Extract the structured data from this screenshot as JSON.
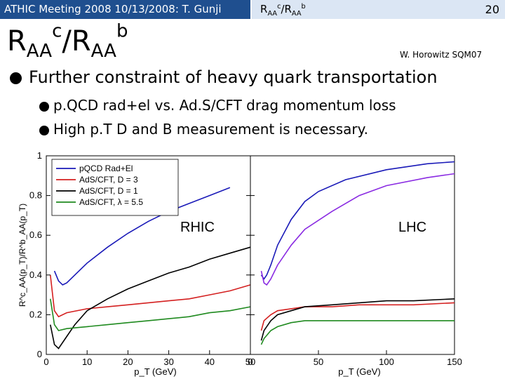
{
  "header": {
    "meeting": "ATHIC Meeting 2008 10/13/2008: T. Gunji",
    "subject": {
      "base": "R",
      "sub1": "AA",
      "sup1": "c",
      "sep": "/R",
      "sub2": "AA",
      "sup2": "b"
    },
    "page_number": "20"
  },
  "title": {
    "base": "R",
    "sub1": "AA",
    "sup1": "c",
    "sep": "/R",
    "sub2": "AA",
    "sup2": "b"
  },
  "citation": "W. Horowitz SQM07",
  "bullets": [
    "Further constraint of heavy quark transportation",
    "p.QCD rad+el vs. Ad.S/CFT drag momentum loss",
    "High p.T D and B measurement is necessary."
  ],
  "colors": {
    "header_bg": "#1f4f8f",
    "header_right_bg": "#dbe6f4",
    "blue": "#1a1ab8",
    "red": "#d42020",
    "black": "#000000",
    "green": "#1f8a1f",
    "purple": "#8a2be2"
  },
  "chart_data": {
    "type": "line",
    "ylabel": "R^c_AA(p_T)/R^b_AA(p_T)",
    "ylim": [
      0,
      1
    ],
    "yticks": [
      "0",
      "0.2",
      "0.4",
      "0.6",
      "0.8",
      "1"
    ],
    "legend": [
      "pQCD Rad+El",
      "AdS/CFT, D = 3",
      "AdS/CFT, D = 1",
      "AdS/CFT, λ = 5.5"
    ],
    "legend_position": "top-left",
    "panels": [
      {
        "label": "RHIC",
        "xlabel": "p_T (GeV)",
        "xlim": [
          0,
          50
        ],
        "xticks": [
          "0",
          "10",
          "20",
          "30",
          "40",
          "50"
        ],
        "series": [
          {
            "name": "pQCD Rad+El",
            "color": "blue",
            "x": [
              2,
              3,
              4,
              5,
              7,
              10,
              15,
              20,
              25,
              30,
              35,
              40,
              45
            ],
            "y": [
              0.42,
              0.37,
              0.35,
              0.36,
              0.4,
              0.46,
              0.54,
              0.61,
              0.67,
              0.72,
              0.76,
              0.8,
              0.84
            ]
          },
          {
            "name": "AdS/CFT, D = 3",
            "color": "red",
            "x": [
              1,
              2,
              3,
              5,
              10,
              15,
              20,
              25,
              30,
              35,
              40,
              45,
              50
            ],
            "y": [
              0.4,
              0.22,
              0.19,
              0.21,
              0.23,
              0.24,
              0.25,
              0.26,
              0.27,
              0.28,
              0.3,
              0.32,
              0.35
            ]
          },
          {
            "name": "AdS/CFT, D = 1",
            "color": "black",
            "x": [
              1,
              2,
              3,
              5,
              7,
              10,
              15,
              20,
              25,
              30,
              35,
              40,
              45,
              50
            ],
            "y": [
              0.15,
              0.05,
              0.03,
              0.09,
              0.15,
              0.22,
              0.28,
              0.33,
              0.37,
              0.41,
              0.44,
              0.48,
              0.51,
              0.54
            ]
          },
          {
            "name": "AdS/CFT, λ = 5.5",
            "color": "green",
            "x": [
              1,
              2,
              3,
              5,
              10,
              15,
              20,
              25,
              30,
              35,
              40,
              45,
              50
            ],
            "y": [
              0.28,
              0.15,
              0.12,
              0.13,
              0.14,
              0.15,
              0.16,
              0.17,
              0.18,
              0.19,
              0.21,
              0.22,
              0.24
            ]
          }
        ]
      },
      {
        "label": "LHC",
        "xlabel": "p_T (GeV)",
        "xlim": [
          0,
          150
        ],
        "xticks": [
          "0",
          "50",
          "100",
          "150"
        ],
        "series": [
          {
            "name": "pQCD Rad+El",
            "color": "blue",
            "x": [
              8,
              10,
              12,
              15,
              20,
              30,
              40,
              50,
              70,
              100,
              130,
              150
            ],
            "y": [
              0.4,
              0.38,
              0.4,
              0.45,
              0.55,
              0.68,
              0.77,
              0.82,
              0.88,
              0.93,
              0.96,
              0.97
            ]
          },
          {
            "name": "AdS/CFT, D = 3",
            "color": "red",
            "x": [
              8,
              10,
              15,
              20,
              30,
              40,
              60,
              80,
              100,
              120,
              150
            ],
            "y": [
              0.12,
              0.17,
              0.2,
              0.22,
              0.23,
              0.24,
              0.24,
              0.25,
              0.25,
              0.25,
              0.26
            ]
          },
          {
            "name": "AdS/CFT, D = 1",
            "color": "black",
            "x": [
              8,
              10,
              15,
              20,
              30,
              40,
              60,
              80,
              100,
              120,
              150
            ],
            "y": [
              0.07,
              0.12,
              0.17,
              0.2,
              0.22,
              0.24,
              0.25,
              0.26,
              0.27,
              0.27,
              0.28
            ]
          },
          {
            "name": "AdS/CFT, λ = 5.5",
            "color": "green",
            "x": [
              8,
              10,
              15,
              20,
              30,
              40,
              60,
              80,
              100,
              120,
              150
            ],
            "y": [
              0.05,
              0.08,
              0.12,
              0.14,
              0.16,
              0.17,
              0.17,
              0.17,
              0.17,
              0.17,
              0.17
            ]
          },
          {
            "name": "",
            "color": "purple",
            "x": [
              8,
              10,
              12,
              15,
              20,
              30,
              40,
              60,
              80,
              100,
              130,
              150
            ],
            "y": [
              0.42,
              0.36,
              0.35,
              0.38,
              0.45,
              0.55,
              0.63,
              0.72,
              0.8,
              0.85,
              0.89,
              0.91
            ]
          }
        ]
      }
    ]
  }
}
